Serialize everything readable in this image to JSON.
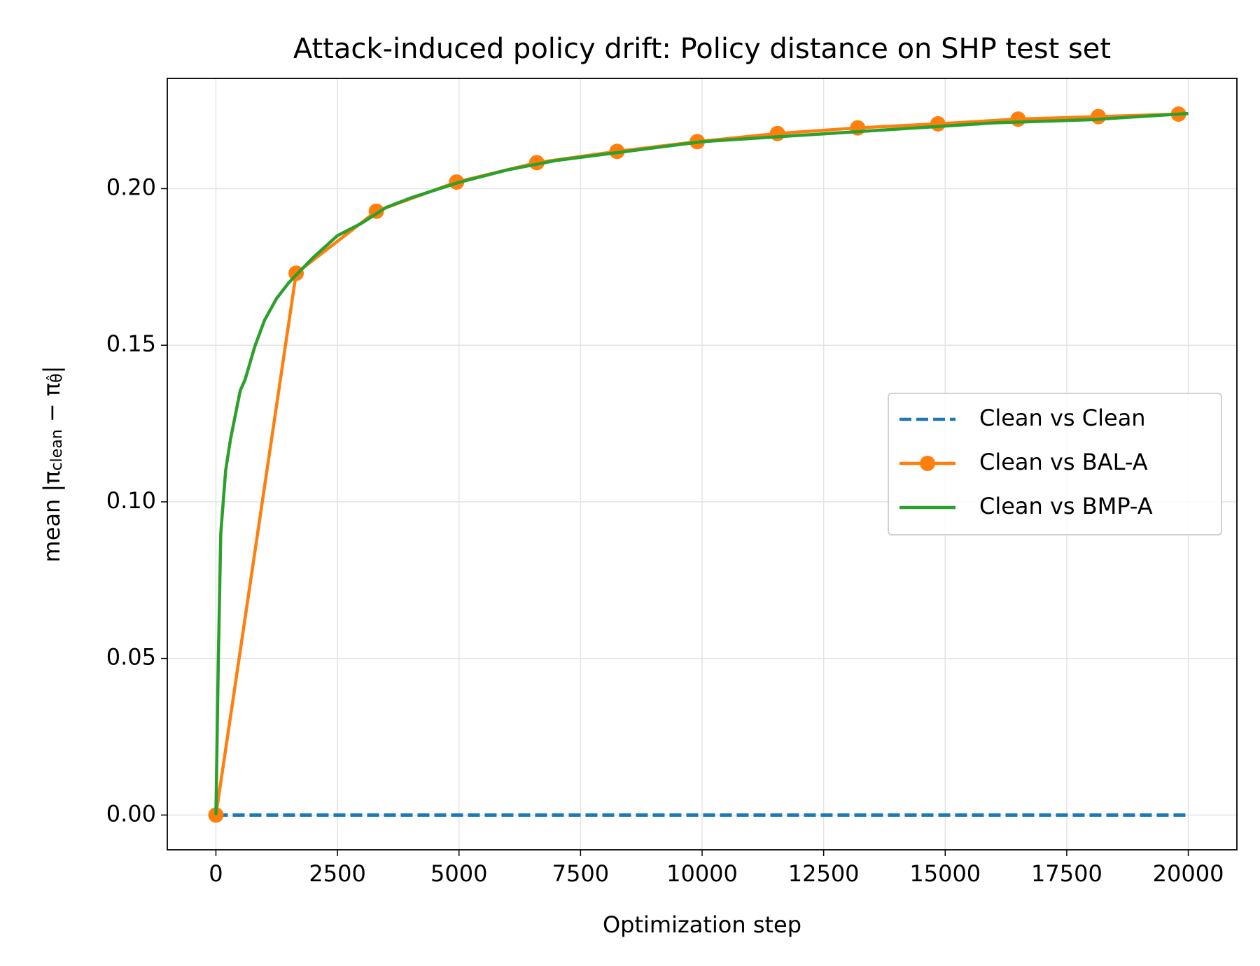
{
  "chart_data": {
    "type": "line",
    "title": "Attack-induced policy drift: Policy distance on SHP test set",
    "xlabel": "Optimization step",
    "ylabel_parts": [
      "mean |π",
      "clean",
      " − π",
      "θ̂",
      "|"
    ],
    "xlim": [
      -1000,
      21000
    ],
    "ylim": [
      -0.0111,
      0.2352
    ],
    "xticks": [
      0,
      2500,
      5000,
      7500,
      10000,
      12500,
      15000,
      17500,
      20000
    ],
    "yticks": [
      {
        "value": 0,
        "label": "0.00"
      },
      0.05,
      {
        "value": 0.1,
        "label": "0.10"
      },
      0.15,
      {
        "value": 0.2,
        "label": "0.20"
      }
    ],
    "grid": true,
    "legend": "center right",
    "series": [
      {
        "name": "Clean vs Clean",
        "color": "#1f77b4",
        "linestyle": "dashed",
        "x": [
          0,
          20000
        ],
        "values": [
          0,
          0
        ]
      },
      {
        "name": "Clean vs BAL-A",
        "color": "#ff7f0e",
        "linestyle": "solid",
        "marker": "o",
        "x": [
          0,
          1650,
          3300,
          4950,
          6600,
          8250,
          9900,
          11550,
          13200,
          14850,
          16500,
          18150,
          19800
        ],
        "values": [
          0,
          0.173,
          0.1928,
          0.2021,
          0.2083,
          0.2119,
          0.215,
          0.2176,
          0.2194,
          0.2207,
          0.2222,
          0.223,
          0.2238
        ]
      },
      {
        "name": "Clean vs BMP-A",
        "color": "#2ca02c",
        "linestyle": "solid",
        "x": [
          0,
          50,
          100,
          200,
          300,
          500,
          600,
          800,
          1000,
          1250,
          1500,
          2000,
          2500,
          3000,
          3500,
          4000,
          5000,
          6000,
          7000,
          8000,
          9000,
          10000,
          12000,
          14000,
          16000,
          18000,
          20000
        ],
        "values": [
          0,
          0.05,
          0.09,
          0.11,
          0.12,
          0.1355,
          0.139,
          0.1496,
          0.158,
          0.165,
          0.17,
          0.178,
          0.185,
          0.189,
          0.194,
          0.197,
          0.202,
          0.206,
          0.209,
          0.211,
          0.213,
          0.215,
          0.217,
          0.219,
          0.221,
          0.222,
          0.224
        ]
      }
    ]
  }
}
